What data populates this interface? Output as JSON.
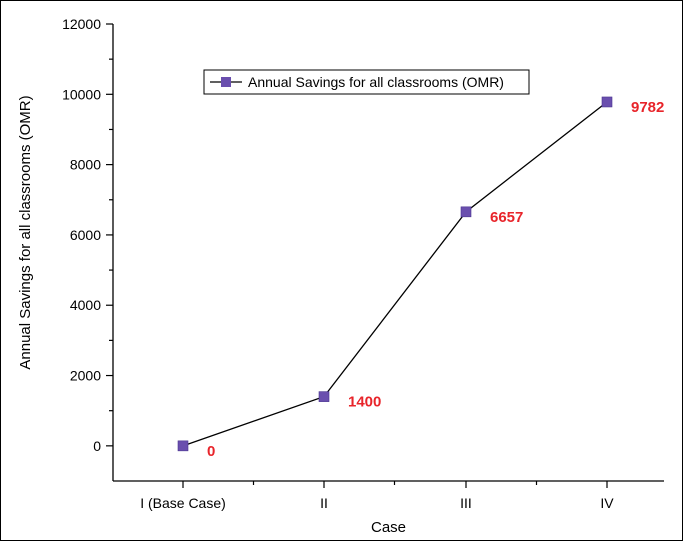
{
  "chart_data": {
    "type": "line",
    "title": "",
    "categories": [
      "I (Base Case)",
      "II",
      "III",
      "IV"
    ],
    "series": [
      {
        "name": "Annual Savings for all classrooms (OMR)",
        "values": [
          0,
          1400,
          6657,
          9782
        ],
        "data_labels": [
          "0",
          "1400",
          "6657",
          "9782"
        ]
      }
    ],
    "xlabel": "Case",
    "ylabel": "Annual Savings for all classrooms (OMR)",
    "ylim": [
      -1000,
      12000
    ],
    "yticks": [
      0,
      2000,
      4000,
      6000,
      8000,
      10000,
      12000
    ],
    "grid": false,
    "legend": "top-center",
    "colors": {
      "line": "#000000",
      "marker": "#6a4fae",
      "data_label": "#e8242a",
      "axis": "#000000"
    }
  }
}
